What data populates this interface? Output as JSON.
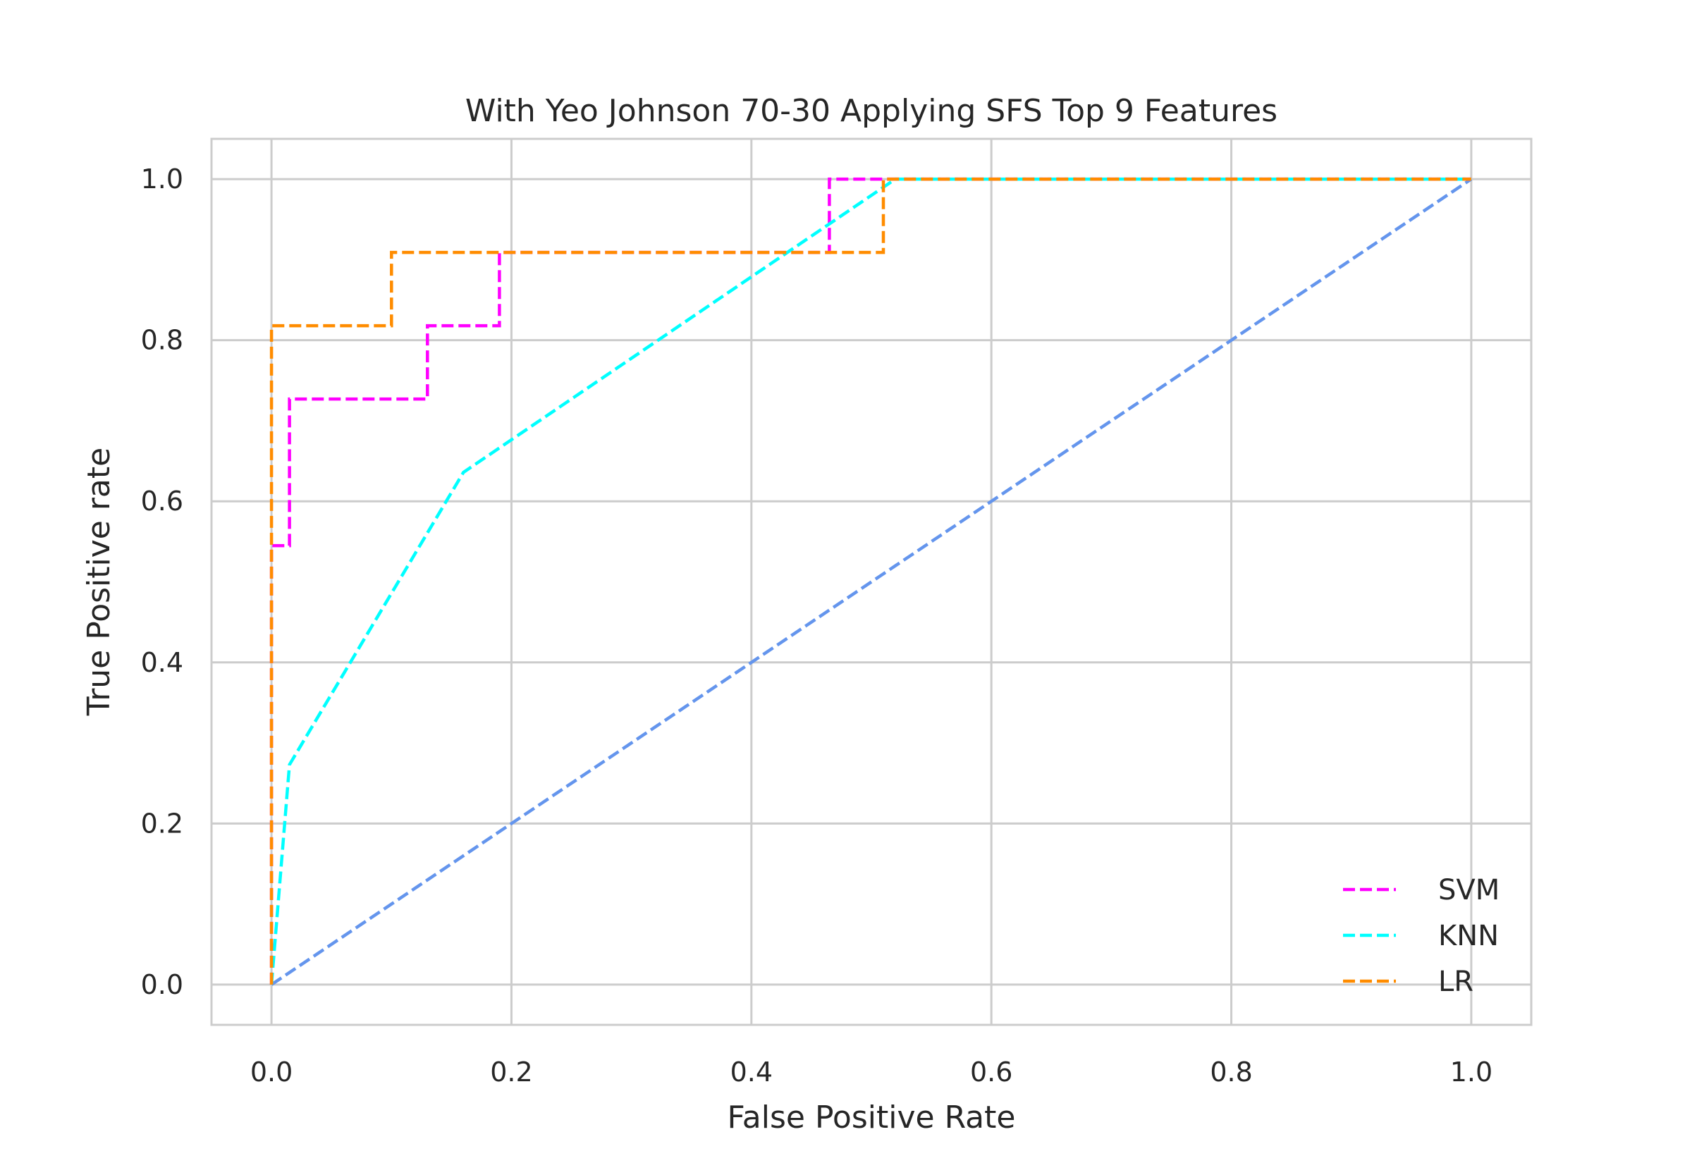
{
  "chart_data": {
    "type": "line",
    "title": "With Yeo Johnson 70-30 Applying SFS Top 9 Features",
    "xlabel": "False Positive Rate",
    "ylabel": "True Positive rate",
    "xlim": [
      -0.05,
      1.05
    ],
    "ylim": [
      -0.05,
      1.05
    ],
    "xticks": [
      0.0,
      0.2,
      0.4,
      0.6,
      0.8,
      1.0
    ],
    "yticks": [
      0.0,
      0.2,
      0.4,
      0.6,
      0.8,
      1.0
    ],
    "xtick_labels": [
      "0.0",
      "0.2",
      "0.4",
      "0.6",
      "0.8",
      "1.0"
    ],
    "ytick_labels": [
      "0.0",
      "0.2",
      "0.4",
      "0.6",
      "0.8",
      "1.0"
    ],
    "grid": true,
    "legend_position": "lower-right",
    "series": [
      {
        "name": "SVM",
        "color": "#ff00ff",
        "style": "dashed",
        "x": [
          0.0,
          0.0,
          0.015,
          0.015,
          0.13,
          0.13,
          0.19,
          0.19,
          0.465,
          0.465,
          1.0
        ],
        "y": [
          0.0,
          0.545,
          0.545,
          0.727,
          0.727,
          0.818,
          0.818,
          0.909,
          0.909,
          1.0,
          1.0
        ]
      },
      {
        "name": "KNN",
        "color": "#00ffff",
        "style": "dashed",
        "x": [
          0.0,
          0.015,
          0.16,
          0.52,
          1.0
        ],
        "y": [
          0.0,
          0.273,
          0.636,
          1.0,
          1.0
        ]
      },
      {
        "name": "LR",
        "color": "#ff8c00",
        "style": "dashed",
        "x": [
          0.0,
          0.0,
          0.1,
          0.1,
          0.51,
          0.51,
          1.0
        ],
        "y": [
          0.0,
          0.818,
          0.818,
          0.909,
          0.909,
          1.0,
          1.0
        ]
      }
    ],
    "reference_line": {
      "color": "#6495ed",
      "style": "dashed",
      "x": [
        0.0,
        1.0
      ],
      "y": [
        0.0,
        1.0
      ]
    }
  }
}
